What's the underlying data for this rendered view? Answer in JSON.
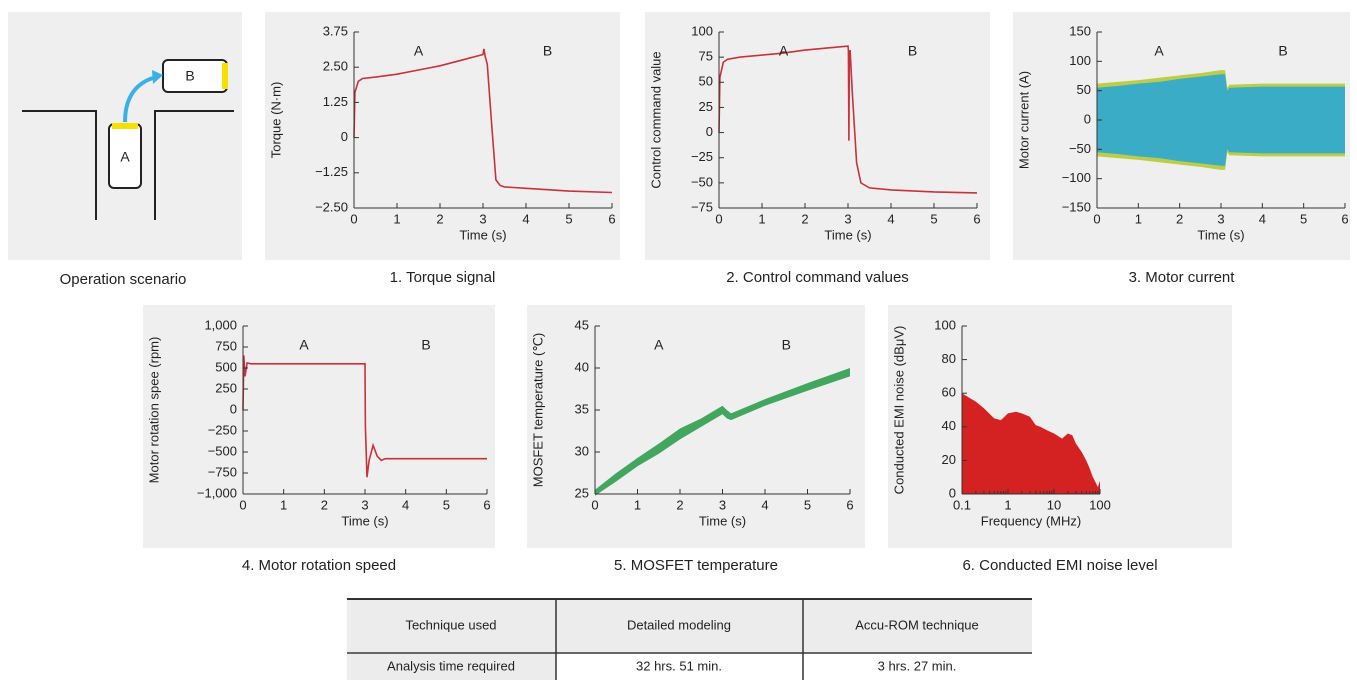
{
  "scenario": {
    "labels": [
      "A",
      "B"
    ],
    "caption": "Operation scenario"
  },
  "chart_data": [
    {
      "type": "line",
      "caption": "1. Torque signal",
      "xlabel": "Time (s)",
      "ylabel": "Torque (N·m)",
      "annotations": [
        "A",
        "B"
      ],
      "color": "#c9323a",
      "x": [
        0,
        0.02,
        0.1,
        0.2,
        0.5,
        1,
        1.5,
        2,
        2.5,
        3,
        3.02,
        3.05,
        3.1,
        3.2,
        3.3,
        3.4,
        3.5,
        4,
        5,
        6
      ],
      "values": [
        0,
        1.6,
        2.0,
        2.1,
        2.15,
        2.25,
        2.4,
        2.55,
        2.75,
        2.95,
        3.15,
        2.9,
        2.6,
        0.5,
        -1.5,
        -1.7,
        -1.75,
        -1.8,
        -1.9,
        -1.95
      ],
      "xlim": [
        0,
        6
      ],
      "xticks": [
        0,
        1,
        2,
        3,
        4,
        5,
        6
      ],
      "ylim": [
        -2.5,
        3.75
      ],
      "yticks": [
        {
          "value": -2.5,
          "label": "−2.50"
        },
        {
          "value": -1.25,
          "label": "−1.25"
        },
        0,
        1.25,
        {
          "value": 2.5,
          "label": "2.50"
        },
        3.75
      ]
    },
    {
      "type": "line",
      "caption": "2. Control command values",
      "xlabel": "Time (s)",
      "ylabel": "Control command value",
      "annotations": [
        "A",
        "B"
      ],
      "color": "#c9323a",
      "x": [
        0,
        0.02,
        0.1,
        0.2,
        0.5,
        1,
        1.5,
        2,
        2.5,
        3,
        3.01,
        3.02,
        3.03,
        3.05,
        3.1,
        3.2,
        3.3,
        3.5,
        4,
        5,
        6
      ],
      "values": [
        0,
        55,
        70,
        73,
        75,
        77,
        79,
        82,
        84,
        86,
        82,
        -8,
        70,
        82,
        40,
        -30,
        -50,
        -55,
        -57,
        -59,
        -60
      ],
      "xlim": [
        0,
        6
      ],
      "xticks": [
        0,
        1,
        2,
        3,
        4,
        5,
        6
      ],
      "ylim": [
        -75,
        100
      ],
      "yticks": [
        {
          "value": -75,
          "label": "−75"
        },
        {
          "value": -50,
          "label": "−50"
        },
        {
          "value": -25,
          "label": "−25"
        },
        0,
        25,
        50,
        75,
        100
      ]
    },
    {
      "type": "band",
      "caption": "3. Motor current",
      "xlabel": "Time (s)",
      "ylabel": "Motor current (A)",
      "annotations": [
        "A",
        "B"
      ],
      "x": [
        0,
        0.5,
        1,
        1.5,
        2,
        2.5,
        3,
        3.1,
        3.15,
        3.2,
        4,
        5,
        6
      ],
      "series": [
        {
          "color": "#b6c935",
          "upper": [
            62,
            65,
            68,
            72,
            76,
            80,
            85,
            85,
            55,
            60,
            62,
            62,
            62
          ],
          "lower": [
            -62,
            -65,
            -68,
            -72,
            -76,
            -80,
            -85,
            -85,
            -55,
            -60,
            -62,
            -62,
            -62
          ]
        },
        {
          "color": "#2ba8d3",
          "upper": [
            55,
            58,
            62,
            65,
            70,
            74,
            78,
            78,
            50,
            55,
            57,
            57,
            57
          ],
          "lower": [
            -55,
            -58,
            -62,
            -65,
            -70,
            -74,
            -78,
            -78,
            -50,
            -55,
            -57,
            -57,
            -57
          ]
        }
      ],
      "xlim": [
        0,
        6
      ],
      "xticks": [
        0,
        1,
        2,
        3,
        4,
        5,
        6
      ],
      "ylim": [
        -150,
        150
      ],
      "yticks": [
        {
          "value": -150,
          "label": "−150"
        },
        {
          "value": -100,
          "label": "−100"
        },
        {
          "value": -50,
          "label": "−50"
        },
        0,
        50,
        100,
        150
      ]
    },
    {
      "type": "line",
      "caption": "4. Motor rotation speed",
      "xlabel": "Time (s)",
      "ylabel": "Motor rotation spee (rpm)",
      "annotations": [
        "A",
        "B"
      ],
      "color": "#c9323a",
      "x": [
        0,
        0.02,
        0.05,
        0.1,
        0.2,
        1,
        2,
        3,
        3.01,
        3.05,
        3.1,
        3.2,
        3.3,
        3.4,
        3.5,
        4,
        5,
        6
      ],
      "values": [
        0,
        650,
        400,
        560,
        550,
        550,
        550,
        550,
        -200,
        -800,
        -600,
        -420,
        -550,
        -600,
        -580,
        -580,
        -580,
        -580
      ],
      "xlim": [
        0,
        6
      ],
      "xticks": [
        0,
        1,
        2,
        3,
        4,
        5,
        6
      ],
      "ylim": [
        -1000,
        1000
      ],
      "yticks": [
        {
          "value": -1000,
          "label": "−1,000"
        },
        {
          "value": -750,
          "label": "−750"
        },
        {
          "value": -500,
          "label": "−500"
        },
        {
          "value": -250,
          "label": "−250"
        },
        0,
        250,
        500,
        750,
        {
          "value": 1000,
          "label": "1,000"
        }
      ]
    },
    {
      "type": "band",
      "caption": "5. MOSFET temperature",
      "xlabel": "Time (s)",
      "ylabel": "MOSFET temperature (℃)",
      "annotations": [
        "A",
        "B"
      ],
      "x": [
        0,
        0.5,
        1,
        1.5,
        2,
        2.5,
        3,
        3.1,
        3.2,
        4,
        5,
        6
      ],
      "series": [
        {
          "color": "#2f9d4e",
          "upper": [
            25.5,
            27.5,
            29.3,
            31,
            32.8,
            34,
            35.5,
            35,
            34.6,
            36.3,
            38.2,
            40
          ],
          "lower": [
            24.8,
            26.5,
            28.3,
            29.8,
            31.5,
            33,
            34.5,
            34,
            33.8,
            35.5,
            37.3,
            39
          ]
        }
      ],
      "xlim": [
        0,
        6
      ],
      "xticks": [
        0,
        1,
        2,
        3,
        4,
        5,
        6
      ],
      "ylim": [
        25,
        45
      ],
      "yticks": [
        25,
        30,
        35,
        40,
        45
      ]
    },
    {
      "type": "area",
      "caption": "6. Conducted EMI noise level",
      "xlabel": "Frequency (MHz)",
      "ylabel": "Conducted EMI noise (dBμV)",
      "color": "#d42222",
      "xlog": true,
      "x": [
        0.1,
        0.15,
        0.2,
        0.3,
        0.5,
        0.7,
        1,
        1.5,
        2,
        3,
        4,
        5,
        7,
        10,
        15,
        20,
        25,
        30,
        40,
        50,
        60,
        70,
        80,
        90,
        100
      ],
      "values": [
        60,
        57,
        55,
        51,
        45,
        44,
        48,
        49,
        48,
        46,
        41,
        40,
        38,
        36,
        33,
        36,
        35,
        30,
        25,
        20,
        15,
        10,
        7,
        4,
        8
      ],
      "xlim": [
        0.1,
        100
      ],
      "xticks": [
        0.1,
        1,
        10,
        100
      ],
      "ylim": [
        0,
        100
      ],
      "yticks": [
        0,
        20,
        40,
        60,
        80,
        100
      ]
    }
  ],
  "table": {
    "header": [
      "Technique used",
      "Detailed modeling",
      "Accu-ROM technique"
    ],
    "rows": [
      [
        "Analysis time required",
        "32 hrs. 51 min.",
        "3 hrs. 27 min."
      ]
    ]
  }
}
